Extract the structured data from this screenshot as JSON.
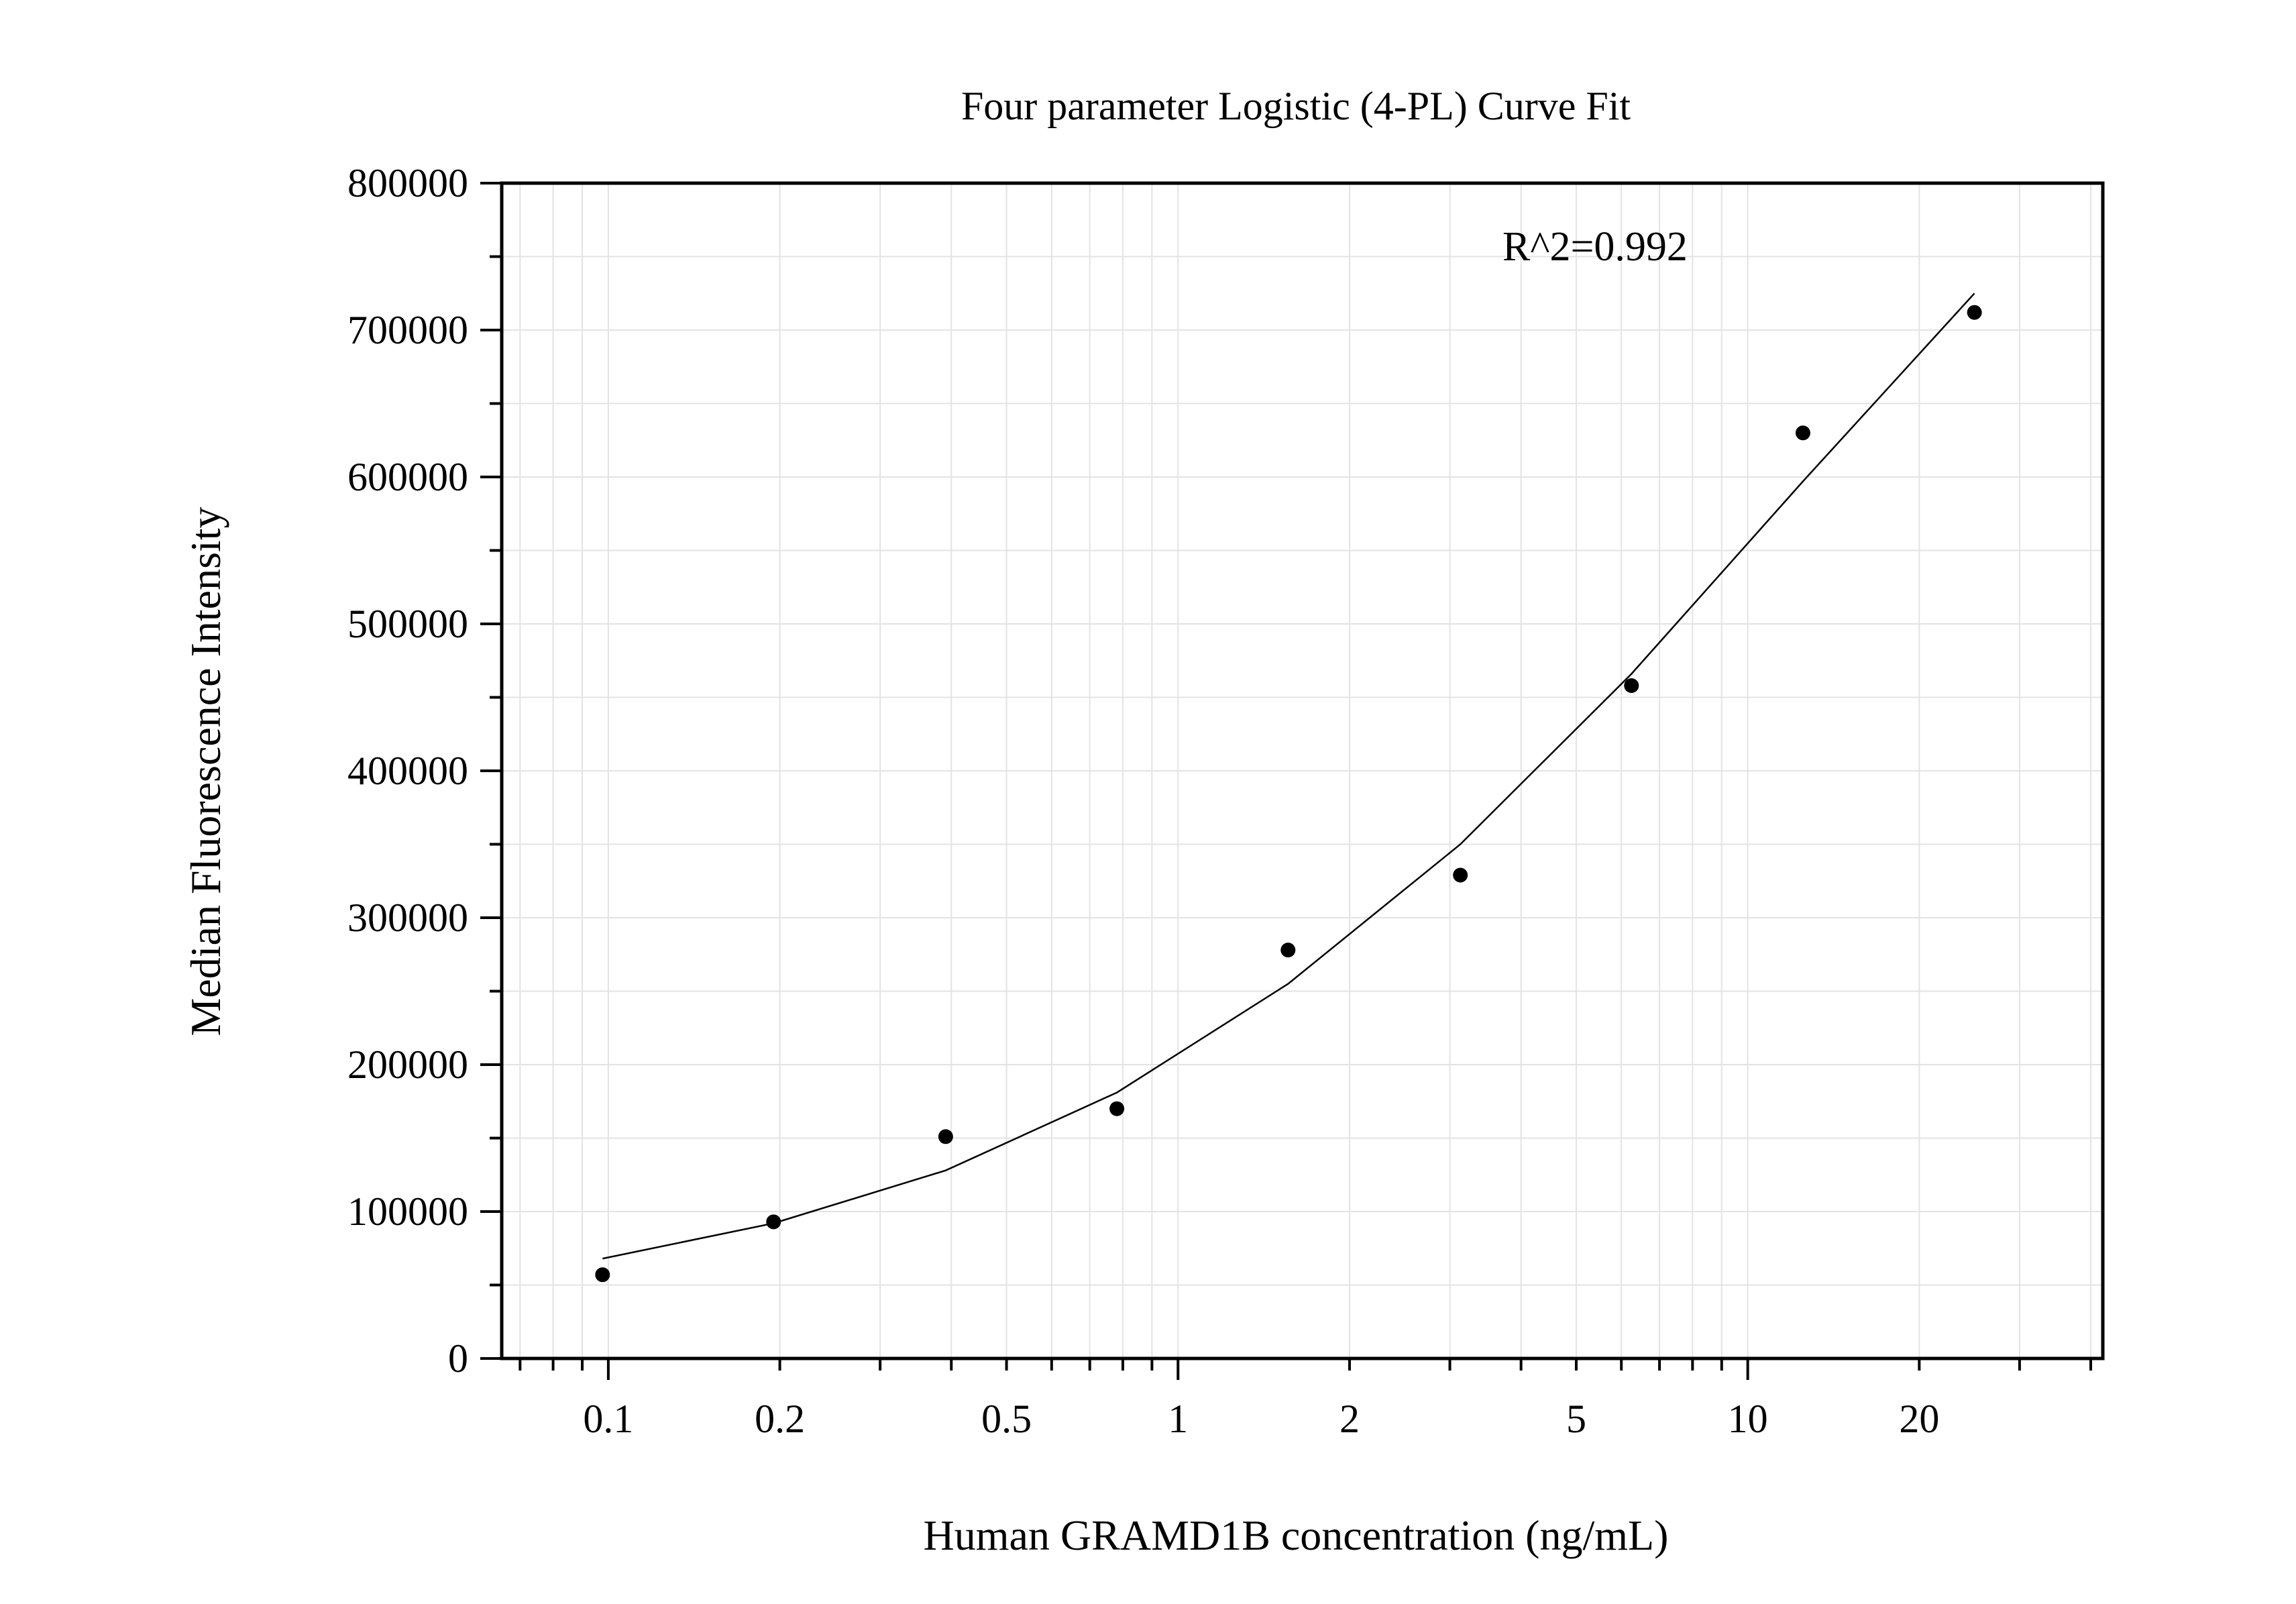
{
  "chart_data": {
    "type": "scatter",
    "title": "Four parameter Logistic (4-PL) Curve Fit",
    "xlabel": "Human GRAMD1B concentration (ng/mL)",
    "ylabel": "Median Fluorescence Intensity",
    "xscale": "log",
    "xlim": [
      0.065,
      42
    ],
    "ylim": [
      0,
      800000
    ],
    "grid": true,
    "x_ticks": [
      0.1,
      0.2,
      0.5,
      1,
      2,
      5,
      10,
      20
    ],
    "x_tick_labels": [
      "0.1",
      "0.2",
      "0.5",
      "1",
      "2",
      "5",
      "10",
      "20"
    ],
    "y_ticks": [
      0,
      100000,
      200000,
      300000,
      400000,
      500000,
      600000,
      700000,
      800000
    ],
    "y_tick_labels": [
      "0",
      "100000",
      "200000",
      "300000",
      "400000",
      "500000",
      "600000",
      "700000",
      "800000"
    ],
    "annotation": "R^2=0.992",
    "series": [
      {
        "type": "scatter",
        "x": [
          0.0977,
          0.195,
          0.391,
          0.781,
          1.56,
          3.13,
          6.25,
          12.5,
          25
        ],
        "y": [
          57000,
          93000,
          151000,
          170000,
          278000,
          329000,
          458000,
          630000,
          712000
        ]
      },
      {
        "type": "line",
        "x": [
          0.0977,
          0.195,
          0.391,
          0.781,
          1.56,
          3.13,
          6.25,
          12.5,
          25
        ],
        "y": [
          68000,
          92000,
          128000,
          181000,
          255000,
          350000,
          466000,
          597000,
          725000
        ]
      }
    ]
  }
}
